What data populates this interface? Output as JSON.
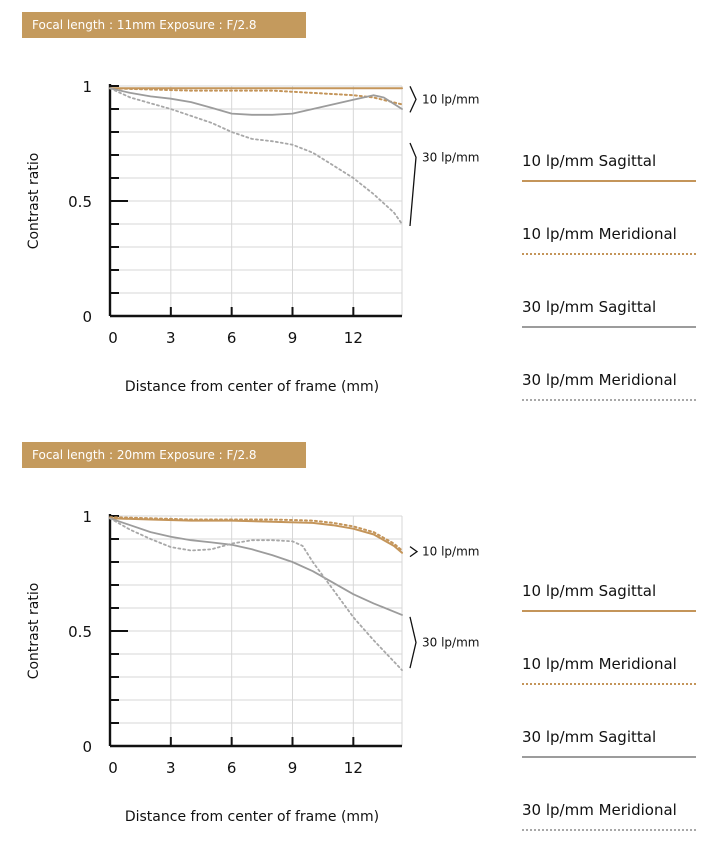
{
  "colors": {
    "banner": "#c49a5d",
    "sagittal10": "#c4955a",
    "meridional10": "#c4955a",
    "sagittal30": "#9c9c9c",
    "meridional30": "#a8a8a8",
    "grid": "#d7d7d7",
    "axis": "#111111"
  },
  "legend": {
    "items": [
      {
        "label": "10 lp/mm Sagittal",
        "style": "solid",
        "color": "#c4955a"
      },
      {
        "label": "10 lp/mm Meridional",
        "style": "dotted",
        "color": "#c4955a"
      },
      {
        "label": "30 lp/mm Sagittal",
        "style": "solid",
        "color": "#9c9c9c"
      },
      {
        "label": "30 lp/mm Meridional",
        "style": "dotted",
        "color": "#a8a8a8"
      }
    ]
  },
  "chart_data": [
    {
      "type": "line",
      "title": "Focal length : 11mm Exposure : F/2.8",
      "xlabel": "Distance from center of frame (mm)",
      "ylabel": "Contrast ratio",
      "xlim": [
        0,
        14.4
      ],
      "ylim": [
        0,
        1
      ],
      "xticks": [
        0,
        3,
        6,
        9,
        12
      ],
      "yticks": [
        0,
        0.5,
        1
      ],
      "ytick_labels": [
        "0",
        "0.5",
        "1"
      ],
      "grid": true,
      "annotations": [
        "10 lp/mm",
        "30 lp/mm"
      ],
      "series": [
        {
          "name": "10 lp/mm Sagittal",
          "x": [
            0,
            2,
            4,
            6,
            8,
            10,
            12,
            14.4
          ],
          "values": [
            0.99,
            0.99,
            0.99,
            0.99,
            0.99,
            0.99,
            0.99,
            0.99
          ]
        },
        {
          "name": "10 lp/mm Meridional",
          "x": [
            0,
            2,
            4,
            6,
            8,
            10,
            12,
            13,
            14.4
          ],
          "values": [
            0.99,
            0.985,
            0.98,
            0.98,
            0.98,
            0.97,
            0.96,
            0.95,
            0.92
          ]
        },
        {
          "name": "30 lp/mm Sagittal",
          "x": [
            0,
            1,
            2,
            3,
            4,
            5,
            6,
            7,
            8,
            9,
            10,
            11,
            12,
            13,
            13.5,
            14.4
          ],
          "values": [
            0.99,
            0.97,
            0.955,
            0.945,
            0.93,
            0.905,
            0.88,
            0.875,
            0.875,
            0.88,
            0.9,
            0.92,
            0.94,
            0.96,
            0.95,
            0.9
          ]
        },
        {
          "name": "30 lp/mm Meridional",
          "x": [
            0,
            1,
            2,
            3,
            4,
            5,
            6,
            7,
            8,
            9,
            10,
            11,
            12,
            13,
            14,
            14.4
          ],
          "values": [
            0.99,
            0.95,
            0.925,
            0.9,
            0.87,
            0.84,
            0.8,
            0.77,
            0.76,
            0.745,
            0.71,
            0.655,
            0.6,
            0.53,
            0.45,
            0.4
          ]
        }
      ]
    },
    {
      "type": "line",
      "title": "Focal length : 20mm Exposure : F/2.8",
      "xlabel": "Distance from center of frame (mm)",
      "ylabel": "Contrast ratio",
      "xlim": [
        0,
        14.4
      ],
      "ylim": [
        0,
        1
      ],
      "xticks": [
        0,
        3,
        6,
        9,
        12
      ],
      "yticks": [
        0,
        0.5,
        1
      ],
      "ytick_labels": [
        "0",
        "0.5",
        "1"
      ],
      "grid": true,
      "annotations": [
        "10 lp/mm",
        "30 lp/mm"
      ],
      "series": [
        {
          "name": "10 lp/mm Sagittal",
          "x": [
            0,
            2,
            4,
            6,
            8,
            10,
            11,
            12,
            13,
            14,
            14.4
          ],
          "values": [
            0.99,
            0.985,
            0.98,
            0.98,
            0.975,
            0.97,
            0.96,
            0.945,
            0.92,
            0.87,
            0.84
          ]
        },
        {
          "name": "10 lp/mm Meridional",
          "x": [
            0,
            2,
            4,
            6,
            8,
            10,
            11,
            12,
            13,
            14,
            14.4
          ],
          "values": [
            0.995,
            0.99,
            0.985,
            0.985,
            0.985,
            0.98,
            0.97,
            0.955,
            0.93,
            0.88,
            0.85
          ]
        },
        {
          "name": "30 lp/mm Sagittal",
          "x": [
            0,
            1,
            2,
            3,
            4,
            5,
            6,
            7,
            8,
            9,
            10,
            11,
            12,
            13,
            14.4
          ],
          "values": [
            0.99,
            0.96,
            0.93,
            0.91,
            0.895,
            0.885,
            0.875,
            0.855,
            0.83,
            0.8,
            0.76,
            0.71,
            0.66,
            0.62,
            0.57
          ]
        },
        {
          "name": "30 lp/mm Meridional",
          "x": [
            0,
            1,
            2,
            3,
            4,
            5,
            6,
            7,
            8,
            9,
            9.5,
            10,
            11,
            12,
            13,
            14.4
          ],
          "values": [
            0.99,
            0.94,
            0.9,
            0.865,
            0.85,
            0.855,
            0.88,
            0.895,
            0.895,
            0.89,
            0.87,
            0.8,
            0.68,
            0.56,
            0.46,
            0.33
          ]
        }
      ]
    }
  ]
}
